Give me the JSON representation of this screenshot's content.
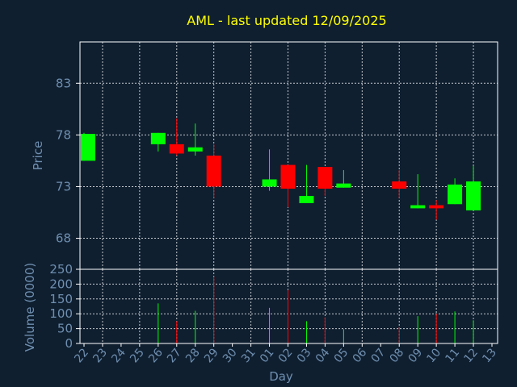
{
  "colors": {
    "background": "#0f1f30",
    "title": "#ffff00",
    "axis_text": "#6f8fb0",
    "frame": "#ffffff",
    "grid": "#ffffff",
    "up": "#00ff00",
    "down": "#ff0000"
  },
  "chart_data": {
    "type": "candlestick",
    "title": "AML - last updated 12/09/2025",
    "xlabel": "Day",
    "price_panel": {
      "ylabel": "Price",
      "ylim": [
        65,
        87
      ],
      "yticks": [
        68,
        73,
        78,
        83
      ],
      "grid": true
    },
    "volume_panel": {
      "ylabel": "Volume (0000)",
      "ylim": [
        0,
        250
      ],
      "yticks": [
        0,
        50,
        100,
        150,
        200,
        250
      ],
      "grid": true
    },
    "days": [
      "22",
      "23",
      "24",
      "25",
      "26",
      "27",
      "28",
      "29",
      "30",
      "31",
      "01",
      "02",
      "03",
      "04",
      "05",
      "06",
      "07",
      "08",
      "09",
      "10",
      "11",
      "12",
      "13"
    ],
    "candles": [
      {
        "day": "22",
        "open": 75.5,
        "high": 78.2,
        "low": 75.5,
        "close": 78.1,
        "volume": 0
      },
      {
        "day": "26",
        "open": 77.1,
        "high": 78.2,
        "low": 76.4,
        "close": 78.2,
        "volume": 135
      },
      {
        "day": "27",
        "open": 77.1,
        "high": 79.6,
        "low": 76.0,
        "close": 76.2,
        "volume": 75
      },
      {
        "day": "28",
        "open": 76.4,
        "high": 79.1,
        "low": 76.0,
        "close": 76.8,
        "volume": 110
      },
      {
        "day": "29",
        "open": 76.0,
        "high": 77.1,
        "low": 71.9,
        "close": 73.0,
        "volume": 225
      },
      {
        "day": "01",
        "open": 73.0,
        "high": 76.6,
        "low": 72.6,
        "close": 73.7,
        "volume": 120
      },
      {
        "day": "02",
        "open": 75.1,
        "high": 75.1,
        "low": 71.0,
        "close": 72.8,
        "volume": 180
      },
      {
        "day": "03",
        "open": 71.4,
        "high": 75.1,
        "low": 71.4,
        "close": 72.1,
        "volume": 75
      },
      {
        "day": "04",
        "open": 74.9,
        "high": 74.9,
        "low": 72.1,
        "close": 72.8,
        "volume": 88
      },
      {
        "day": "05",
        "open": 72.9,
        "high": 74.6,
        "low": 72.9,
        "close": 73.3,
        "volume": 48
      },
      {
        "day": "08",
        "open": 73.5,
        "high": 74.6,
        "low": 71.9,
        "close": 72.8,
        "volume": 55
      },
      {
        "day": "09",
        "open": 70.9,
        "high": 74.2,
        "low": 70.9,
        "close": 71.2,
        "volume": 92
      },
      {
        "day": "10",
        "open": 71.2,
        "high": 71.7,
        "low": 69.8,
        "close": 70.9,
        "volume": 100
      },
      {
        "day": "11",
        "open": 71.3,
        "high": 73.8,
        "low": 71.3,
        "close": 73.2,
        "volume": 108
      },
      {
        "day": "12",
        "open": 70.7,
        "high": 75.0,
        "low": 70.7,
        "close": 73.5,
        "volume": 78
      }
    ]
  }
}
